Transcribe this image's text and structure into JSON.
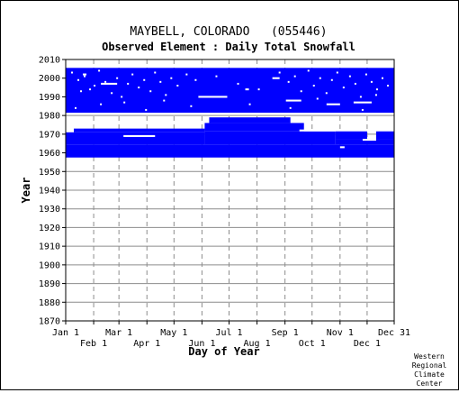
{
  "chart_data": {
    "type": "heatmap",
    "title": "MAYBELL, COLORADO   (055446)",
    "subtitle": "Observed Element : Daily Total Snowfall",
    "xlabel": "Day of Year",
    "ylabel": "Year",
    "xlim": [
      1,
      365
    ],
    "ylim": [
      1870,
      2010
    ],
    "x_ticks_upper": [
      {
        "label": "Jan 1",
        "day": 1
      },
      {
        "label": "Mar 1",
        "day": 60
      },
      {
        "label": "May 1",
        "day": 121
      },
      {
        "label": "Jul 1",
        "day": 182
      },
      {
        "label": "Sep 1",
        "day": 244
      },
      {
        "label": "Nov 1",
        "day": 305
      },
      {
        "label": "Dec 31",
        "day": 365
      }
    ],
    "x_ticks_lower": [
      {
        "label": "Feb 1",
        "day": 32
      },
      {
        "label": "Apr 1",
        "day": 91
      },
      {
        "label": "Jun 1",
        "day": 152
      },
      {
        "label": "Aug 1",
        "day": 213
      },
      {
        "label": "Oct 1",
        "day": 274
      },
      {
        "label": "Dec 1",
        "day": 335
      }
    ],
    "y_ticks": [
      1870,
      1880,
      1890,
      1900,
      1910,
      1920,
      1930,
      1940,
      1950,
      1960,
      1970,
      1980,
      1990,
      2000,
      2010
    ],
    "data_color": "#0000ff",
    "grid": true,
    "records": [
      {
        "year_from": 1957.5,
        "year_to": 1964.5,
        "day_from": 1,
        "day_to": 365
      },
      {
        "year_from": 1964.5,
        "year_to": 1971,
        "day_from": 1,
        "day_to": 155
      },
      {
        "year_from": 1971,
        "year_to": 1973,
        "day_from": 10,
        "day_to": 155
      },
      {
        "year_from": 1964.5,
        "year_to": 1971.5,
        "day_from": 155,
        "day_to": 300
      },
      {
        "year_from": 1971.5,
        "year_to": 1976,
        "day_from": 155,
        "day_to": 265
      },
      {
        "year_from": 1976,
        "year_to": 1979,
        "day_from": 160,
        "day_to": 250
      },
      {
        "year_from": 1964.5,
        "year_to": 1967.5,
        "day_from": 300,
        "day_to": 365
      },
      {
        "year_from": 1967.5,
        "year_to": 1971.5,
        "day_from": 300,
        "day_to": 335
      },
      {
        "year_from": 1967.5,
        "year_to": 1971.5,
        "day_from": 345,
        "day_to": 365
      },
      {
        "year_from": 1981.5,
        "year_to": 2005.5,
        "day_from": 1,
        "day_to": 365
      }
    ],
    "gaps": [
      {
        "year_from": 1996.5,
        "year_to": 1997.5,
        "day_from": 40,
        "day_to": 58
      },
      {
        "year_from": 1989.5,
        "year_to": 1990.5,
        "day_from": 148,
        "day_to": 180
      },
      {
        "year_from": 1987.5,
        "year_to": 1988.5,
        "day_from": 245,
        "day_to": 262
      },
      {
        "year_from": 1985.5,
        "year_to": 1986.5,
        "day_from": 290,
        "day_to": 305
      },
      {
        "year_from": 1986.5,
        "year_to": 1987.5,
        "day_from": 320,
        "day_to": 340
      },
      {
        "year_from": 1973.5,
        "year_to": 1974.5,
        "day_from": 128,
        "day_to": 150
      },
      {
        "year_from": 1971.5,
        "year_to": 1972.5,
        "day_from": 260,
        "day_to": 300
      },
      {
        "year_from": 1966.5,
        "year_to": 1967.5,
        "day_from": 330,
        "day_to": 345
      },
      {
        "year_from": 1968.5,
        "year_to": 1969.5,
        "day_from": 65,
        "day_to": 100
      },
      {
        "year_from": 1962.5,
        "year_to": 1963.5,
        "day_from": 305,
        "day_to": 310
      },
      {
        "year_from": 1999.5,
        "year_to": 2000.5,
        "day_from": 230,
        "day_to": 238
      },
      {
        "year_from": 2001.5,
        "year_to": 2002.5,
        "day_from": 20,
        "day_to": 24
      },
      {
        "year_from": 1993.5,
        "year_to": 1994.5,
        "day_from": 200,
        "day_to": 204
      }
    ],
    "dots": [
      [
        8,
        2003
      ],
      [
        15,
        1999
      ],
      [
        22,
        2001
      ],
      [
        28,
        1994
      ],
      [
        33,
        1996
      ],
      [
        38,
        2004
      ],
      [
        45,
        1998
      ],
      [
        52,
        1992
      ],
      [
        58,
        2000
      ],
      [
        63,
        1990
      ],
      [
        70,
        1997
      ],
      [
        75,
        2002
      ],
      [
        82,
        1995
      ],
      [
        88,
        1999
      ],
      [
        95,
        1993
      ],
      [
        100,
        2003
      ],
      [
        106,
        1998
      ],
      [
        112,
        1991
      ],
      [
        118,
        2000
      ],
      [
        125,
        1996
      ],
      [
        135,
        2002
      ],
      [
        145,
        1999
      ],
      [
        168,
        2001
      ],
      [
        192,
        1997
      ],
      [
        215,
        1994
      ],
      [
        238,
        2003
      ],
      [
        248,
        1998
      ],
      [
        255,
        2001
      ],
      [
        262,
        1993
      ],
      [
        270,
        2004
      ],
      [
        276,
        1996
      ],
      [
        283,
        2000
      ],
      [
        290,
        1992
      ],
      [
        296,
        1999
      ],
      [
        302,
        2003
      ],
      [
        309,
        1995
      ],
      [
        316,
        2001
      ],
      [
        322,
        1997
      ],
      [
        328,
        1990
      ],
      [
        334,
        2002
      ],
      [
        340,
        1998
      ],
      [
        346,
        1994
      ],
      [
        352,
        2000
      ],
      [
        358,
        1996
      ],
      [
        12,
        1984
      ],
      [
        40,
        1986
      ],
      [
        90,
        1983
      ],
      [
        140,
        1985
      ],
      [
        250,
        1984
      ],
      [
        330,
        1983
      ],
      [
        18,
        1993
      ],
      [
        66,
        1987
      ],
      [
        110,
        1988
      ],
      [
        205,
        1986
      ],
      [
        280,
        1989
      ],
      [
        345,
        1991
      ]
    ]
  },
  "credit": {
    "line1": "Western",
    "line2": "Regional",
    "line3": "Climate",
    "line4": "Center"
  }
}
